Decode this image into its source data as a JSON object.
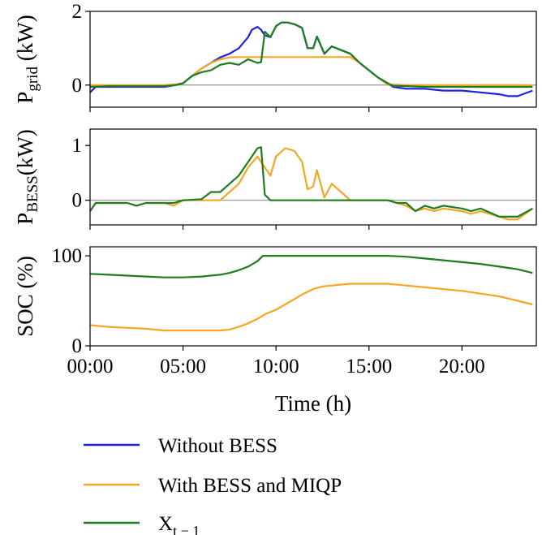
{
  "chart_data": {
    "type": "line",
    "x_ticks": [
      0,
      5,
      10,
      15,
      20
    ],
    "x_tick_labels": [
      "00:00",
      "05:00",
      "10:00",
      "15:00",
      "20:00"
    ],
    "xlabel": "Time (h)",
    "xlim": [
      0,
      24
    ],
    "colors": {
      "without": "#1f1fe6",
      "with": "#f5a623",
      "xt": "#1e7d1e",
      "zero": "#999999"
    },
    "legend": {
      "placement": "bottom",
      "entries": [
        {
          "key": "without",
          "label": "Without BESS"
        },
        {
          "key": "with",
          "label": "With BESS and MIQP"
        },
        {
          "key": "xt",
          "label": "X",
          "sub": "t − 1"
        }
      ]
    },
    "panels": [
      {
        "id": "grid",
        "ylabel": {
          "main": "P",
          "sub": "grid",
          "unit": " (kW)"
        },
        "ylim": [
          -0.6,
          2.0
        ],
        "yticks": [
          0,
          2
        ],
        "zero_line": true,
        "series": {
          "without": [
            [
              0,
              -0.2
            ],
            [
              0.3,
              -0.05
            ],
            [
              1,
              -0.05
            ],
            [
              2,
              -0.05
            ],
            [
              3,
              -0.05
            ],
            [
              4,
              -0.05
            ],
            [
              4.6,
              0.0
            ],
            [
              5,
              0.05
            ],
            [
              5.5,
              0.25
            ],
            [
              6,
              0.45
            ],
            [
              6.5,
              0.6
            ],
            [
              7,
              0.75
            ],
            [
              7.5,
              0.85
            ],
            [
              8,
              1.0
            ],
            [
              8.5,
              1.3
            ],
            [
              8.7,
              1.5
            ],
            [
              9,
              1.58
            ],
            [
              9.2,
              1.5
            ],
            [
              9.4,
              1.35
            ],
            [
              9.7,
              1.3
            ],
            [
              10,
              1.6
            ],
            [
              10.3,
              1.7
            ],
            [
              10.6,
              1.7
            ],
            [
              11,
              1.65
            ],
            [
              11.4,
              1.55
            ],
            [
              11.7,
              1.0
            ],
            [
              12,
              1.0
            ],
            [
              12.2,
              1.32
            ],
            [
              12.6,
              0.85
            ],
            [
              13,
              1.05
            ],
            [
              13.5,
              0.95
            ],
            [
              14,
              0.85
            ],
            [
              14.5,
              0.6
            ],
            [
              15,
              0.4
            ],
            [
              15.5,
              0.2
            ],
            [
              16,
              0.05
            ],
            [
              16.3,
              -0.05
            ],
            [
              17,
              -0.1
            ],
            [
              18,
              -0.1
            ],
            [
              19,
              -0.15
            ],
            [
              20,
              -0.15
            ],
            [
              21,
              -0.2
            ],
            [
              22,
              -0.25
            ],
            [
              22.5,
              -0.3
            ],
            [
              23,
              -0.3
            ],
            [
              23.8,
              -0.15
            ]
          ],
          "with": [
            [
              0,
              0.0
            ],
            [
              1,
              0.0
            ],
            [
              2,
              0.0
            ],
            [
              3,
              0.0
            ],
            [
              4,
              0.0
            ],
            [
              4.6,
              0.02
            ],
            [
              5,
              0.05
            ],
            [
              5.5,
              0.25
            ],
            [
              6,
              0.45
            ],
            [
              6.5,
              0.6
            ],
            [
              7,
              0.7
            ],
            [
              7.5,
              0.75
            ],
            [
              8,
              0.76
            ],
            [
              10,
              0.76
            ],
            [
              12,
              0.76
            ],
            [
              13,
              0.76
            ],
            [
              14,
              0.76
            ],
            [
              14.5,
              0.6
            ],
            [
              15,
              0.4
            ],
            [
              15.5,
              0.2
            ],
            [
              16,
              0.02
            ],
            [
              17,
              0.0
            ],
            [
              20,
              0.0
            ],
            [
              23.8,
              0.0
            ]
          ],
          "xt": [
            [
              0,
              -0.05
            ],
            [
              1,
              -0.03
            ],
            [
              2,
              -0.03
            ],
            [
              3,
              -0.03
            ],
            [
              4,
              -0.03
            ],
            [
              4.6,
              0.0
            ],
            [
              5,
              0.05
            ],
            [
              5.5,
              0.25
            ],
            [
              6,
              0.35
            ],
            [
              6.5,
              0.4
            ],
            [
              7,
              0.55
            ],
            [
              7.5,
              0.6
            ],
            [
              8,
              0.55
            ],
            [
              8.5,
              0.7
            ],
            [
              9,
              0.6
            ],
            [
              9.2,
              0.62
            ],
            [
              9.4,
              1.45
            ],
            [
              9.7,
              1.3
            ],
            [
              10,
              1.6
            ],
            [
              10.3,
              1.7
            ],
            [
              10.6,
              1.7
            ],
            [
              11,
              1.65
            ],
            [
              11.4,
              1.55
            ],
            [
              11.7,
              1.0
            ],
            [
              12,
              1.0
            ],
            [
              12.2,
              1.32
            ],
            [
              12.6,
              0.85
            ],
            [
              13,
              1.05
            ],
            [
              13.5,
              0.95
            ],
            [
              14,
              0.85
            ],
            [
              14.5,
              0.6
            ],
            [
              15,
              0.4
            ],
            [
              15.5,
              0.2
            ],
            [
              16,
              0.05
            ],
            [
              16.3,
              -0.02
            ],
            [
              17,
              -0.03
            ],
            [
              18,
              -0.05
            ],
            [
              19,
              -0.05
            ],
            [
              20,
              -0.05
            ],
            [
              21,
              -0.05
            ],
            [
              22,
              -0.05
            ],
            [
              23,
              -0.05
            ],
            [
              23.8,
              -0.05
            ]
          ]
        }
      },
      {
        "id": "bess",
        "ylabel": {
          "main": "P",
          "sub": "BESS",
          "unit": "(kW)"
        },
        "ylim": [
          -0.45,
          1.3
        ],
        "yticks": [
          0,
          1
        ],
        "zero_line": true,
        "series": {
          "with": [
            [
              0,
              -0.2
            ],
            [
              0.3,
              -0.05
            ],
            [
              1,
              -0.05
            ],
            [
              2,
              -0.05
            ],
            [
              2.5,
              -0.1
            ],
            [
              3,
              -0.05
            ],
            [
              4,
              -0.05
            ],
            [
              4.5,
              -0.1
            ],
            [
              5,
              0.0
            ],
            [
              6,
              0.0
            ],
            [
              7,
              0.0
            ],
            [
              7.5,
              0.15
            ],
            [
              8,
              0.3
            ],
            [
              8.5,
              0.6
            ],
            [
              9,
              0.8
            ],
            [
              9.4,
              0.6
            ],
            [
              9.7,
              0.45
            ],
            [
              10,
              0.8
            ],
            [
              10.5,
              0.95
            ],
            [
              11,
              0.9
            ],
            [
              11.4,
              0.7
            ],
            [
              11.7,
              0.2
            ],
            [
              12,
              0.25
            ],
            [
              12.2,
              0.55
            ],
            [
              12.6,
              0.05
            ],
            [
              13,
              0.3
            ],
            [
              13.5,
              0.15
            ],
            [
              14,
              0.0
            ],
            [
              15,
              0.0
            ],
            [
              16,
              0.0
            ],
            [
              16.5,
              -0.05
            ],
            [
              17,
              -0.1
            ],
            [
              17.5,
              -0.2
            ],
            [
              18,
              -0.15
            ],
            [
              18.5,
              -0.2
            ],
            [
              19,
              -0.15
            ],
            [
              20,
              -0.2
            ],
            [
              20.5,
              -0.25
            ],
            [
              21,
              -0.2
            ],
            [
              22,
              -0.3
            ],
            [
              22.5,
              -0.35
            ],
            [
              23,
              -0.35
            ],
            [
              23.8,
              -0.15
            ]
          ],
          "xt": [
            [
              0,
              -0.2
            ],
            [
              0.3,
              -0.05
            ],
            [
              1,
              -0.05
            ],
            [
              2,
              -0.05
            ],
            [
              2.5,
              -0.1
            ],
            [
              3,
              -0.05
            ],
            [
              4,
              -0.05
            ],
            [
              4.5,
              -0.05
            ],
            [
              5,
              0.0
            ],
            [
              6,
              0.02
            ],
            [
              6.5,
              0.15
            ],
            [
              7,
              0.15
            ],
            [
              7.5,
              0.3
            ],
            [
              8,
              0.45
            ],
            [
              8.5,
              0.7
            ],
            [
              9,
              0.95
            ],
            [
              9.2,
              0.97
            ],
            [
              9.4,
              0.1
            ],
            [
              9.7,
              0.0
            ],
            [
              10,
              0.0
            ],
            [
              12,
              0.0
            ],
            [
              14,
              0.0
            ],
            [
              15,
              0.0
            ],
            [
              16,
              0.0
            ],
            [
              16.5,
              -0.05
            ],
            [
              17,
              -0.05
            ],
            [
              17.5,
              -0.2
            ],
            [
              18,
              -0.1
            ],
            [
              18.5,
              -0.15
            ],
            [
              19,
              -0.1
            ],
            [
              20,
              -0.15
            ],
            [
              20.5,
              -0.2
            ],
            [
              21,
              -0.15
            ],
            [
              22,
              -0.3
            ],
            [
              22.5,
              -0.3
            ],
            [
              23,
              -0.3
            ],
            [
              23.8,
              -0.15
            ]
          ]
        }
      },
      {
        "id": "soc",
        "ylabel": {
          "main": "SOC (%)",
          "sub": "",
          "unit": ""
        },
        "ylim": [
          0,
          110
        ],
        "yticks": [
          0,
          100
        ],
        "zero_line": false,
        "series": {
          "with": [
            [
              0,
              23
            ],
            [
              1,
              21
            ],
            [
              2,
              20
            ],
            [
              3,
              19
            ],
            [
              4,
              17
            ],
            [
              5,
              17
            ],
            [
              6,
              17
            ],
            [
              7,
              17
            ],
            [
              7.5,
              18
            ],
            [
              8,
              21
            ],
            [
              8.5,
              25
            ],
            [
              9,
              30
            ],
            [
              9.5,
              36
            ],
            [
              10,
              40
            ],
            [
              10.5,
              46
            ],
            [
              11,
              52
            ],
            [
              11.5,
              58
            ],
            [
              12,
              63
            ],
            [
              12.5,
              66
            ],
            [
              13,
              67
            ],
            [
              14,
              69
            ],
            [
              15,
              69
            ],
            [
              16,
              69
            ],
            [
              17,
              67
            ],
            [
              18,
              65
            ],
            [
              19,
              63
            ],
            [
              20,
              61
            ],
            [
              21,
              58
            ],
            [
              22,
              55
            ],
            [
              23,
              50
            ],
            [
              23.8,
              46
            ]
          ],
          "xt": [
            [
              0,
              80
            ],
            [
              1,
              79
            ],
            [
              2,
              78
            ],
            [
              3,
              77
            ],
            [
              4,
              76
            ],
            [
              5,
              76
            ],
            [
              6,
              77
            ],
            [
              7,
              79
            ],
            [
              7.5,
              81
            ],
            [
              8,
              84
            ],
            [
              8.5,
              88
            ],
            [
              9,
              94
            ],
            [
              9.3,
              100
            ],
            [
              10,
              100
            ],
            [
              12,
              100
            ],
            [
              14,
              100
            ],
            [
              15,
              100
            ],
            [
              16,
              100
            ],
            [
              17,
              99
            ],
            [
              18,
              97
            ],
            [
              19,
              95
            ],
            [
              20,
              93
            ],
            [
              21,
              91
            ],
            [
              22,
              88
            ],
            [
              23,
              85
            ],
            [
              23.8,
              81
            ]
          ]
        }
      }
    ]
  }
}
